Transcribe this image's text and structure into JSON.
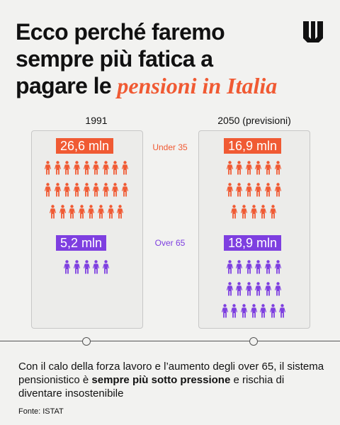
{
  "colors": {
    "orange": "#f05a33",
    "purple": "#7e3fe0"
  },
  "header": {
    "title_line1": "Ecco perché faremo",
    "title_line2": "sempre più fatica a",
    "title_line3_prefix": "pagare le ",
    "title_highlight": "pensioni in Italia",
    "logo_icon": "brand-logo-icon"
  },
  "columns": {
    "left_label": "1991",
    "right_label": "2050 (previsioni)"
  },
  "groups": {
    "under_label": "Under 35",
    "over_label": "Over 65"
  },
  "values": {
    "left_under": "26,6 mln",
    "left_over": "5,2 mln",
    "right_under": "16,9 mln",
    "right_over": "18,9 mln"
  },
  "icon_counts": {
    "left_under": 26,
    "left_over": 5,
    "right_under": 17,
    "right_over": 19
  },
  "footer": {
    "text_before": "Con il calo della forza lavoro e l’aumento degli over 65, il sistema pensionistico è ",
    "text_bold": "sempre più sotto pressione",
    "text_after": " e rischia di diventare insostenibile",
    "source": "Fonte: ISTAT"
  }
}
